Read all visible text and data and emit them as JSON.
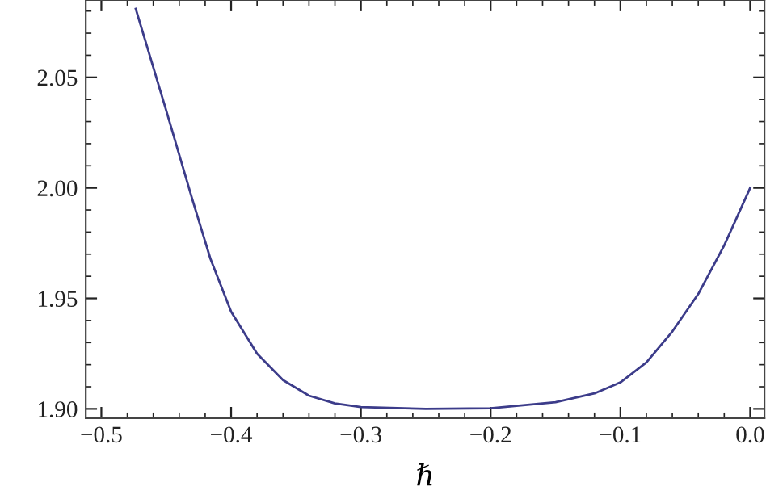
{
  "chart_data": {
    "type": "line",
    "xlabel": "ℏ",
    "series": [
      {
        "color": "#3c3c8a",
        "x": [
          -0.4735,
          -0.45,
          -0.43,
          -0.416,
          -0.4,
          -0.38,
          -0.36,
          -0.34,
          -0.32,
          -0.3,
          -0.25,
          -0.2,
          -0.15,
          -0.12,
          -0.1,
          -0.08,
          -0.06,
          -0.04,
          -0.02,
          0.0
        ],
        "values": [
          2.081,
          2.035,
          1.995,
          1.968,
          1.944,
          1.925,
          1.913,
          1.906,
          1.9025,
          1.9008,
          1.9,
          1.9003,
          1.903,
          1.907,
          1.912,
          1.921,
          1.935,
          1.952,
          1.974,
          2.0
        ]
      }
    ],
    "xlim": [
      -0.512,
      0.011
    ],
    "ylim": [
      1.8958,
      2.085
    ],
    "xticks": [
      {
        "value": -0.5,
        "label": "−0.5"
      },
      {
        "value": -0.4,
        "label": "−0.4"
      },
      {
        "value": -0.3,
        "label": "−0.3"
      },
      {
        "value": -0.2,
        "label": "−0.2"
      },
      {
        "value": -0.1,
        "label": "−0.1"
      },
      {
        "value": 0.0,
        "label": "0.0"
      }
    ],
    "yticks": [
      {
        "value": 1.9,
        "label": "1.90"
      },
      {
        "value": 1.95,
        "label": "1.95"
      },
      {
        "value": 2.0,
        "label": "2.00"
      },
      {
        "value": 2.05,
        "label": "2.05"
      }
    ],
    "grid": false,
    "marker": "none",
    "line_style": "solid"
  }
}
